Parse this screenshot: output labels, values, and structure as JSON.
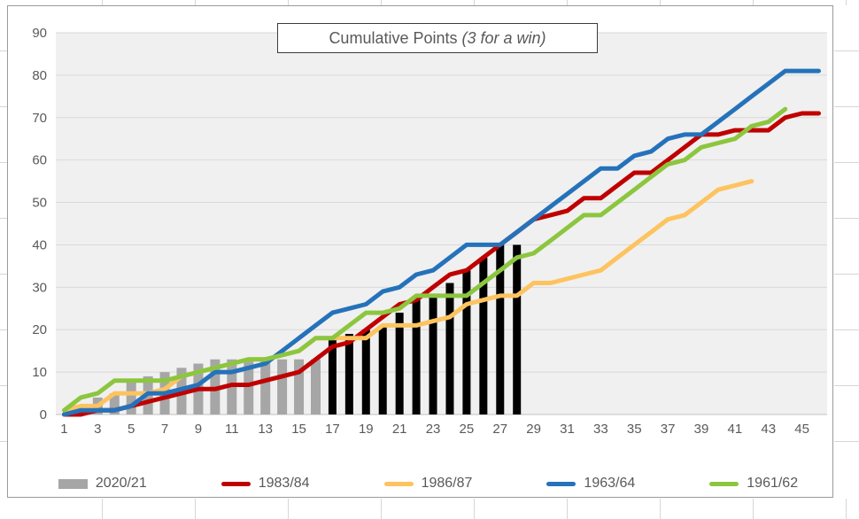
{
  "window": {
    "kind": "spreadsheet-chart"
  },
  "title": {
    "main": "Cumulative Points ",
    "italic": "(3 for a win)"
  },
  "chart_data": {
    "type": "combo",
    "title": "Cumulative Points (3 for a win)",
    "xlabel": "",
    "ylabel": "",
    "x_axis": {
      "ticks": [
        1,
        3,
        5,
        7,
        9,
        11,
        13,
        15,
        17,
        19,
        21,
        23,
        25,
        27,
        29,
        31,
        33,
        35,
        37,
        39,
        41,
        43,
        45
      ],
      "range": [
        0.5,
        46.5
      ]
    },
    "y_axis": {
      "ticks": [
        0,
        10,
        20,
        30,
        40,
        50,
        60,
        70,
        80,
        90
      ],
      "range": [
        0,
        90
      ]
    },
    "grid": true,
    "legend_position": "bottom",
    "plot_background": "#f0f0f0",
    "gridline_color": "#d9d9d9",
    "axis_text_color": "#595959",
    "series": [
      {
        "name": "2020/21",
        "type": "bar",
        "color": "#a6a6a6",
        "secondary_color": "#000000",
        "secondary_from_game": 17,
        "values": [
          0,
          1,
          4,
          5,
          8,
          9,
          10,
          11,
          12,
          13,
          13,
          13,
          13,
          13,
          13,
          13,
          18,
          19,
          20,
          21,
          24,
          27,
          28,
          31,
          34,
          37,
          40,
          40
        ]
      },
      {
        "name": "1983/84",
        "type": "line",
        "color": "#c00000",
        "values": [
          0,
          0,
          1,
          1,
          2,
          3,
          4,
          5,
          6,
          6,
          7,
          7,
          8,
          9,
          10,
          13,
          16,
          17,
          20,
          23,
          26,
          27,
          30,
          33,
          34,
          37,
          40,
          43,
          46,
          47,
          48,
          51,
          51,
          54,
          57,
          57,
          60,
          63,
          66,
          66,
          67,
          67,
          67,
          70,
          71,
          71
        ]
      },
      {
        "name": "1986/87",
        "type": "line",
        "color": "#fdc35f",
        "values": [
          1,
          2,
          2,
          5,
          5,
          5,
          6,
          9,
          10,
          11,
          12,
          13,
          13,
          14,
          15,
          18,
          18,
          18,
          18,
          21,
          21,
          21,
          22,
          23,
          26,
          27,
          28,
          28,
          31,
          31,
          32,
          33,
          34,
          37,
          40,
          43,
          46,
          47,
          50,
          53,
          54,
          55
        ]
      },
      {
        "name": "1963/64",
        "type": "line",
        "color": "#2572bb",
        "values": [
          0,
          1,
          1,
          1,
          2,
          5,
          5,
          6,
          7,
          10,
          10,
          11,
          12,
          15,
          18,
          21,
          24,
          25,
          26,
          29,
          30,
          33,
          34,
          37,
          40,
          40,
          40,
          43,
          46,
          49,
          52,
          55,
          58,
          58,
          61,
          62,
          65,
          66,
          66,
          69,
          72,
          75,
          78,
          81,
          81,
          81
        ]
      },
      {
        "name": "1961/62",
        "type": "line",
        "color": "#8cc63f",
        "values": [
          1,
          4,
          5,
          8,
          8,
          8,
          8,
          9,
          10,
          11,
          12,
          13,
          13,
          14,
          15,
          18,
          18,
          21,
          24,
          24,
          25,
          28,
          28,
          28,
          28,
          31,
          34,
          37,
          38,
          41,
          44,
          47,
          47,
          50,
          53,
          56,
          59,
          60,
          63,
          64,
          65,
          68,
          69,
          72
        ]
      }
    ]
  },
  "legend": {
    "items": [
      {
        "label": "2020/21"
      },
      {
        "label": "1983/84"
      },
      {
        "label": "1986/87"
      },
      {
        "label": "1963/64"
      },
      {
        "label": "1961/62"
      }
    ]
  }
}
